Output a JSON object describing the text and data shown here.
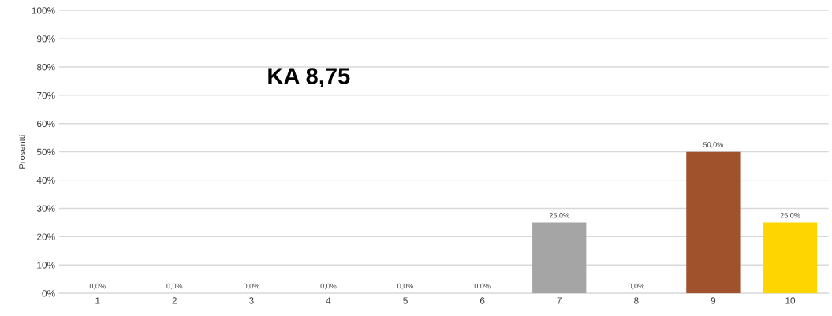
{
  "chart_data": {
    "type": "bar",
    "ylabel": "Prosentti",
    "categories": [
      "1",
      "2",
      "3",
      "4",
      "5",
      "6",
      "7",
      "8",
      "9",
      "10"
    ],
    "values": [
      0,
      0,
      0,
      0,
      0,
      0,
      25,
      0,
      50,
      25
    ],
    "colors": [
      "#a5a5a5",
      "#a5a5a5",
      "#a5a5a5",
      "#a5a5a5",
      "#a5a5a5",
      "#a5a5a5",
      "#a5a5a5",
      "#a5a5a5",
      "#a0522d",
      "#ffd500"
    ],
    "value_labels": [
      "0,0%",
      "0,0%",
      "0,0%",
      "0,0%",
      "0,0%",
      "0,0%",
      "25,0%",
      "0,0%",
      "50,0%",
      "25,0%"
    ],
    "annotations": [
      "KA 8,75"
    ],
    "ylim": [
      0,
      100
    ],
    "yticks": [
      {
        "value": 0,
        "label": "0%"
      },
      {
        "value": 10,
        "label": "10%"
      },
      {
        "value": 20,
        "label": "20%"
      },
      {
        "value": 30,
        "label": "30%"
      },
      {
        "value": 40,
        "label": "40%"
      },
      {
        "value": 50,
        "label": "50%"
      },
      {
        "value": 60,
        "label": "60%"
      },
      {
        "value": 70,
        "label": "70%"
      },
      {
        "value": 80,
        "label": "80%"
      },
      {
        "value": 90,
        "label": "90%"
      },
      {
        "value": 100,
        "label": "100%"
      }
    ],
    "grid": "y"
  }
}
